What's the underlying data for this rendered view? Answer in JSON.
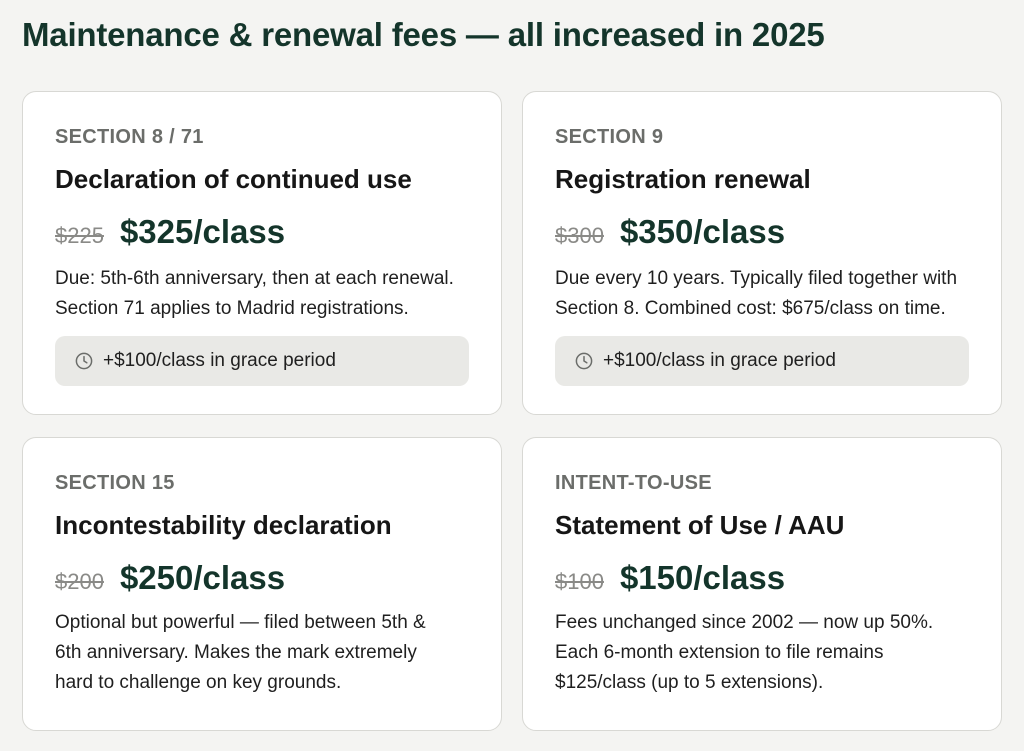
{
  "title": "Maintenance & renewal fees — all increased in 2025",
  "cards": [
    {
      "section": "SECTION 8 / 71",
      "name": "Declaration of continued use",
      "old_price": "$225",
      "new_price": "$325/class",
      "desc_lines": [
        "Due: 5th-6th anniversary, then at each renewal.",
        "Section 71 applies to Madrid registrations."
      ],
      "grace": "+$100/class in grace period",
      "grace_icon": "clock-icon"
    },
    {
      "section": "SECTION 9",
      "name": "Registration renewal",
      "old_price": "$300",
      "new_price": "$350/class",
      "desc_lines": [
        "Due every 10 years. Typically filed together with",
        "Section 8. Combined cost: $675/class on time."
      ],
      "grace": "+$100/class in grace period",
      "grace_icon": "clock-icon"
    },
    {
      "section": "SECTION 15",
      "name": "Incontestability declaration",
      "old_price": "$200",
      "new_price": "$250/class",
      "desc_lines": [
        "Optional but powerful — filed between 5th &",
        "6th anniversary. Makes the mark extremely",
        "hard to challenge on key grounds."
      ]
    },
    {
      "section": "INTENT-TO-USE",
      "name": "Statement of Use / AAU",
      "old_price": "$100",
      "new_price": "$150/class",
      "desc_lines": [
        "Fees unchanged since 2002 — now up 50%.",
        "Each 6-month extension to file remains",
        "$125/class (up to 5 extensions)."
      ]
    }
  ],
  "colors": {
    "accent": "#14352b",
    "muted": "#6b6d6a",
    "pill": "#e9e9e6"
  }
}
